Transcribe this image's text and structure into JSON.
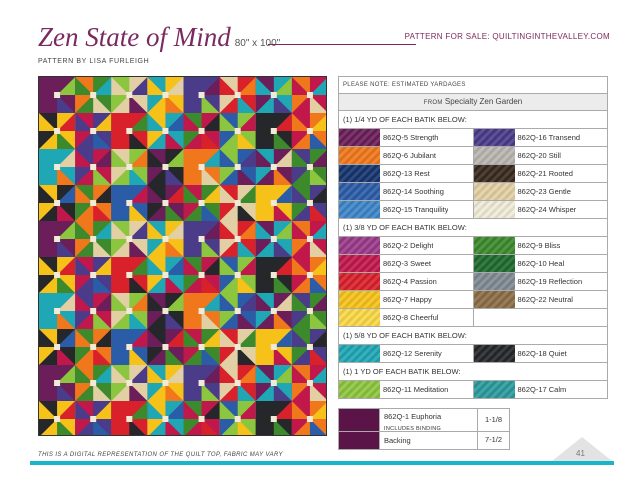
{
  "header": {
    "title": "Zen State of Mind",
    "dimensions": "80\" x 100\"",
    "for_sale": "PATTERN FOR SALE: QUILTINGINTHEVALLEY.COM",
    "byline": "PATTERN BY LISA FURLEIGH"
  },
  "footer": {
    "disclaimer": "THIS IS A DIGITAL REPRESENTATION OF THE QUILT TOP, FABRIC MAY VARY",
    "page_number": "41"
  },
  "table": {
    "note": "PLEASE NOTE: ESTIMATED YARDAGES",
    "from_prefix": "FROM",
    "from_collection": "Specialty Zen Garden",
    "sections": [
      {
        "title": "(1) 1/4 YD OF EACH BATIK BELOW:",
        "rows": [
          [
            {
              "name": "862Q-5 Strength",
              "color": "#6b1e59"
            },
            {
              "name": "862Q-16 Transend",
              "color": "#4b3c8a"
            }
          ],
          [
            {
              "name": "862Q-6 Jubilant",
              "color": "#f0771c"
            },
            {
              "name": "862Q-20 Still",
              "color": "#b9b6b0"
            }
          ],
          [
            {
              "name": "862Q-13 Rest",
              "color": "#16346d"
            },
            {
              "name": "862Q-21 Rooted",
              "color": "#3a2a1d"
            }
          ],
          [
            {
              "name": "862Q-14 Soothing",
              "color": "#2b5ca8"
            },
            {
              "name": "862Q-23 Gentle",
              "color": "#e3cfa4"
            }
          ],
          [
            {
              "name": "862Q-15 Tranquility",
              "color": "#3d86c8"
            },
            {
              "name": "862Q-24 Whisper",
              "color": "#f1ead7"
            }
          ]
        ]
      },
      {
        "title": "(1) 3/8 YD OF EACH BATIK BELOW:",
        "rows": [
          [
            {
              "name": "862Q-2 Delight",
              "color": "#9a3a8a"
            },
            {
              "name": "862Q-9 Bliss",
              "color": "#3c8a2c"
            }
          ],
          [
            {
              "name": "862Q-3 Sweet",
              "color": "#c1184c"
            },
            {
              "name": "862Q-10 Heal",
              "color": "#1f6a2e"
            }
          ],
          [
            {
              "name": "862Q-4 Passion",
              "color": "#d9212b"
            },
            {
              "name": "862Q-19 Reflection",
              "color": "#7f8a92"
            }
          ],
          [
            {
              "name": "862Q-7 Happy",
              "color": "#f6c21a"
            },
            {
              "name": "862Q-22 Neutral",
              "color": "#8c6d46"
            }
          ],
          [
            {
              "name": "862Q-8 Cheerful",
              "color": "#f9d846"
            },
            {
              "name": "",
              "color": "#ffffff"
            }
          ]
        ]
      },
      {
        "title": "(1) 5/8 YD OF EACH BATIK BELOW:",
        "rows": [
          [
            {
              "name": "862Q-12 Serenity",
              "color": "#1fa7b5"
            },
            {
              "name": "862Q-18 Quiet",
              "color": "#26272b"
            }
          ]
        ]
      },
      {
        "title": "(1) 1 YD OF EACH BATIK BELOW:",
        "rows": [
          [
            {
              "name": "862Q-11 Meditation",
              "color": "#8cc63f"
            },
            {
              "name": "862Q-17 Calm",
              "color": "#2b9a9c"
            }
          ]
        ]
      }
    ],
    "extras": [
      {
        "name": "862Q-1 Euphoria",
        "sub": "INCLUDES BINDING",
        "value": "1-1/8",
        "color": "#5a1448"
      },
      {
        "name": "Backing",
        "sub": "",
        "value": "7-1/2",
        "color": "#5a1448"
      }
    ]
  },
  "colors": {
    "accent": "#7a2a5e",
    "bar": "#1ab5c9",
    "quilt_palette": [
      "#6b1e59",
      "#d9212b",
      "#f0771c",
      "#f6c21a",
      "#8cc63f",
      "#3c8a2c",
      "#1fa7b5",
      "#2b5ca8",
      "#4b3c8a",
      "#26272b",
      "#e3cfa4",
      "#c1184c"
    ]
  }
}
